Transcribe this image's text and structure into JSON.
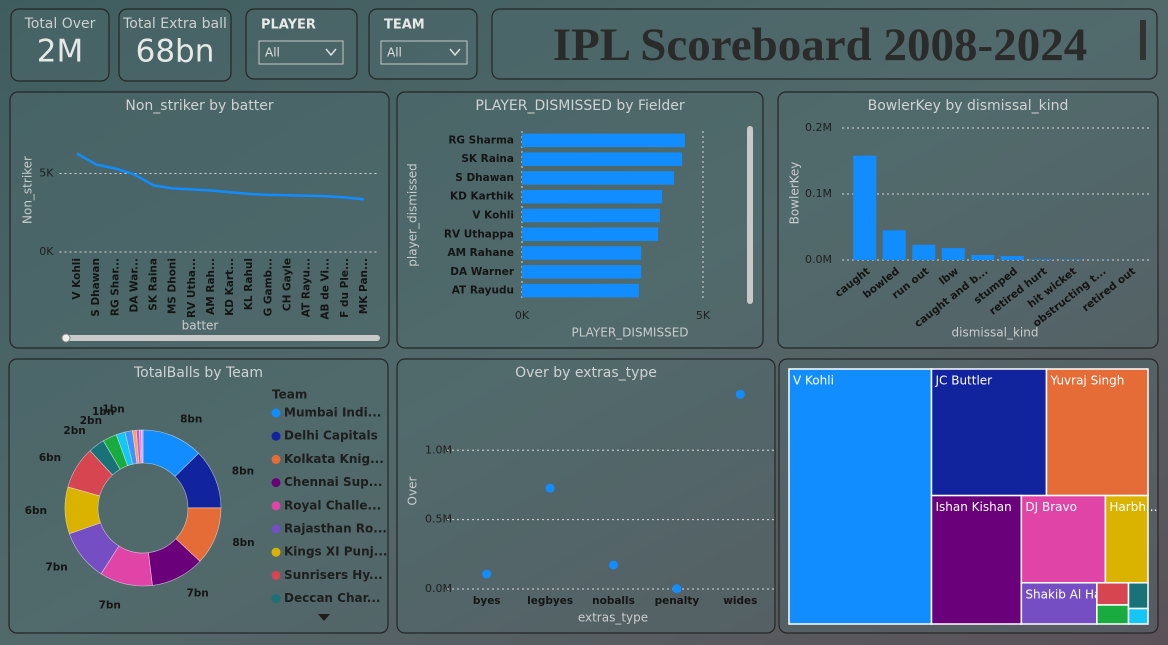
{
  "header": {
    "title": "IPL Scoreboard 2008-2024"
  },
  "cards": [
    {
      "label": "Total Over",
      "value": "2M"
    },
    {
      "label": "Total Extra ball",
      "value": "68bn"
    }
  ],
  "slicers": [
    {
      "label": "PLAYER",
      "selection": "All"
    },
    {
      "label": "TEAM",
      "selection": "All"
    }
  ],
  "chart_data": [
    {
      "type": "line",
      "title": "Non_striker by batter",
      "x_label": "batter",
      "y_label": "Non_striker",
      "categories": [
        "V Kohli",
        "S Dhawan",
        "RG Shar...",
        "DA War...",
        "SK Raina",
        "MS Dhoni",
        "RV Utha...",
        "AM Rah...",
        "KD Kart...",
        "KL Rahul",
        "G Gamb...",
        "CH Gayle",
        "AT Rayu...",
        "AB de Vi...",
        "F du Ple...",
        "MK Pan..."
      ],
      "values": [
        6270,
        5570,
        5320,
        4940,
        4240,
        4050,
        3990,
        3920,
        3800,
        3700,
        3640,
        3620,
        3580,
        3560,
        3480,
        3350
      ],
      "color": "#118dff",
      "ylim": [
        0,
        8000
      ],
      "yticks": [
        {
          "value": 0,
          "label": "0K"
        },
        {
          "value": 5000,
          "label": "5K"
        }
      ],
      "grid": true
    },
    {
      "type": "bar",
      "orientation": "horizontal",
      "title": "PLAYER_DISMISSED by Fielder",
      "x_label": "PLAYER_DISMISSED",
      "y_label": "player_dismissed",
      "categories": [
        "RG Sharma",
        "SK Raina",
        "S Dhawan",
        "KD Karthik",
        "V Kohli",
        "RV Uthappa",
        "AM Rahane",
        "DA Warner",
        "AT Rayudu"
      ],
      "values": [
        4500,
        4420,
        4200,
        3870,
        3810,
        3760,
        3290,
        3290,
        3230
      ],
      "color": "#118dff",
      "xlim": [
        0,
        5000
      ],
      "xticks": [
        {
          "value": 0,
          "label": "0K"
        },
        {
          "value": 5000,
          "label": "5K"
        }
      ],
      "grid": true
    },
    {
      "type": "bar",
      "orientation": "vertical",
      "title": "BowlerKey by dismissal_kind",
      "x_label": "dismissal_kind",
      "y_label": "BowlerKey",
      "categories": [
        "caught",
        "bowled",
        "run out",
        "lbw",
        "caught and b...",
        "stumped",
        "retired hurt",
        "hit wicket",
        "obstructing t...",
        "retired out"
      ],
      "values": [
        158000,
        45000,
        23000,
        18000,
        7500,
        6000,
        1000,
        500,
        200,
        100
      ],
      "color": "#118dff",
      "ylim": [
        0,
        200000
      ],
      "yticks": [
        {
          "value": 0,
          "label": "0.0M"
        },
        {
          "value": 100000,
          "label": "0.1M"
        },
        {
          "value": 200000,
          "label": "0.2M"
        }
      ],
      "grid": true
    },
    {
      "type": "pie",
      "donut": true,
      "title": "TotalBalls by Team",
      "legend_title": "Team",
      "legend": "right",
      "categories": [
        "Mumbai Indi...",
        "Delhi Capitals",
        "Kolkata Knig...",
        "Chennai Sup...",
        "Royal Challe...",
        "Rajasthan Ro...",
        "Kings XI Punj...",
        "Sunrisers Hy...",
        "Deccan Char...",
        null,
        null,
        null,
        null,
        null,
        null,
        null
      ],
      "values": [
        8.2,
        8.0,
        7.8,
        7.2,
        7.1,
        6.9,
        6.3,
        5.7,
        2.2,
        1.9,
        1.2,
        1.0,
        0.5,
        0.4,
        0.3,
        0.2
      ],
      "value_labels": [
        "8bn",
        "8bn",
        "8bn",
        "7bn",
        "7bn",
        "7bn",
        "6bn",
        "6bn",
        "2bn",
        "2bn",
        "1bn",
        "1bn",
        null,
        null,
        null,
        null
      ],
      "colors": [
        "#118dff",
        "#12239e",
        "#e66c37",
        "#6b007b",
        "#e044a7",
        "#744ec2",
        "#d9b300",
        "#d64550",
        "#197278",
        "#1aab40",
        "#15c6f4",
        "#4092ff",
        "#ffa058",
        "#be5dc9",
        "#f472d0",
        "#b5a1ff"
      ]
    },
    {
      "type": "scatter",
      "title": "Over by extras_type",
      "x_label": "extras_type",
      "y_label": "Over",
      "categories": [
        "byes",
        "legbyes",
        "noballs",
        "penalty",
        "wides"
      ],
      "values": [
        108000,
        727000,
        173000,
        2000,
        1403000
      ],
      "color": "#118dff",
      "ylim": [
        0,
        1420000
      ],
      "yticks": [
        {
          "value": 0,
          "label": "0.0M"
        },
        {
          "value": 500000,
          "label": "0.5M"
        },
        {
          "value": 1000000,
          "label": "1.0M"
        }
      ],
      "grid": true
    },
    {
      "type": "treemap",
      "categories": [
        "V Kohli",
        "JC Buttler",
        "Yuvraj Singh",
        "Ishan Kishan",
        "DJ Bravo",
        "Harbh...",
        "Shakib Al Hasan",
        null,
        null,
        null,
        null
      ],
      "values": [
        36200,
        14500,
        12800,
        11500,
        7300,
        3700,
        3100,
        700,
        600,
        500,
        300
      ],
      "colors": [
        "#118dff",
        "#12239e",
        "#e66c37",
        "#6b007b",
        "#e044a7",
        "#d9b300",
        "#744ec2",
        "#d64550",
        "#1aab40",
        "#197278",
        "#15c6f4"
      ]
    }
  ]
}
